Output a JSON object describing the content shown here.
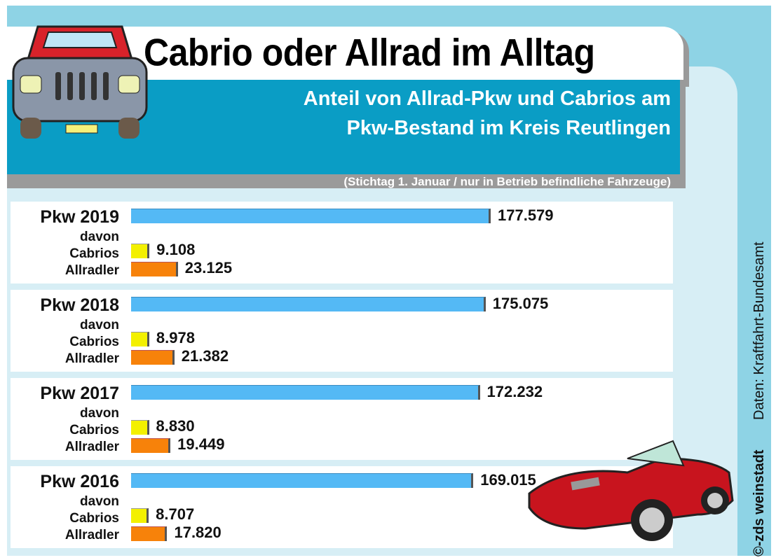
{
  "title": "Cabrio oder Allrad im Alltag",
  "subtitle_line1": "Anteil von Allrad-Pkw und Cabrios am",
  "subtitle_line2": "Pkw-Bestand im Kreis Reutlingen",
  "note": "(Stichtag 1. Januar / nur in Betrieb befindliche Fahrzeuge)",
  "source": "Daten: Kraftfahrt-Bundesamt",
  "credit": "©-zds weinstadt",
  "chart_data": {
    "type": "bar",
    "title": "Cabrio oder Allrad im Alltag",
    "groups": [
      {
        "label": "Pkw 2019",
        "davon": "davon",
        "total": "177.579",
        "cabrio_label": "Cabrios",
        "cabrio": "9.108",
        "allrad_label": "Allradler",
        "allrad": "23.125",
        "v": [
          177579,
          9108,
          23125
        ]
      },
      {
        "label": "Pkw 2018",
        "davon": "davon",
        "total": "175.075",
        "cabrio_label": "Cabrios",
        "cabrio": "8.978",
        "allrad_label": "Allradler",
        "allrad": "21.382",
        "v": [
          175075,
          8978,
          21382
        ]
      },
      {
        "label": "Pkw 2017",
        "davon": "davon",
        "total": "172.232",
        "cabrio_label": "Cabrios",
        "cabrio": "8.830",
        "allrad_label": "Allradler",
        "allrad": "19.449",
        "v": [
          172232,
          8830,
          19449
        ]
      },
      {
        "label": "Pkw 2016",
        "davon": "davon",
        "total": "169.015",
        "cabrio_label": "Cabrios",
        "cabrio": "8.707",
        "allrad_label": "Allradler",
        "allrad": "17.820",
        "v": [
          169015,
          8707,
          17820
        ]
      }
    ],
    "series": [
      {
        "name": "Pkw",
        "color": "#54b9f5"
      },
      {
        "name": "Cabrios",
        "color": "#f3f000"
      },
      {
        "name": "Allradler",
        "color": "#f7820a"
      }
    ]
  }
}
